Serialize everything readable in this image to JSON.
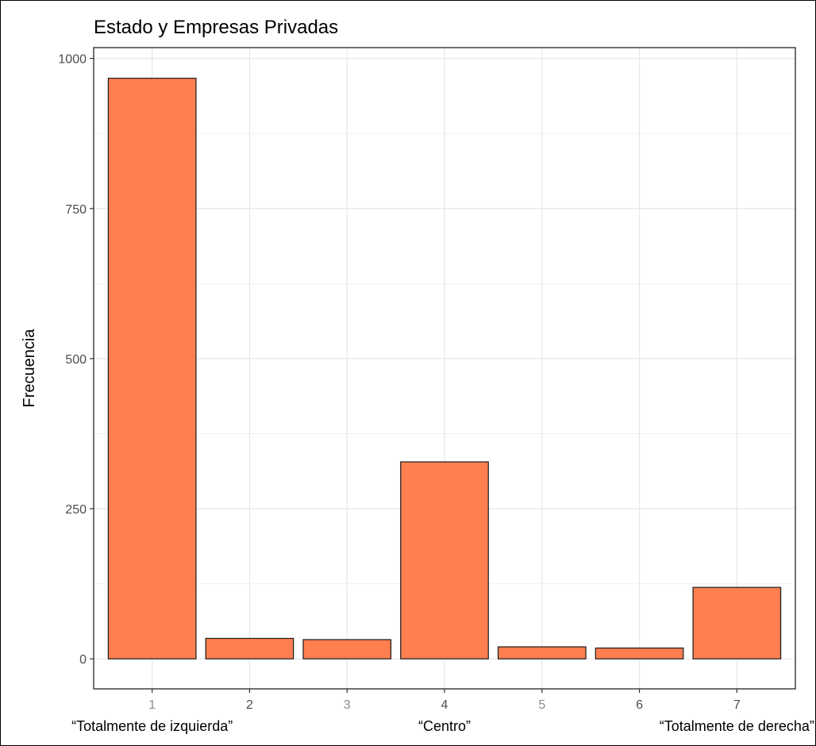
{
  "chart_data": {
    "type": "bar",
    "title": "Estado y Empresas Privadas",
    "xlabel": "",
    "ylabel": "Frecuencia",
    "categories": [
      "1",
      "2",
      "3",
      "4",
      "5",
      "6",
      "7"
    ],
    "values": [
      967,
      34,
      32,
      328,
      20,
      18,
      119
    ],
    "ylim": [
      -50,
      1018
    ],
    "yticks": [
      0,
      250,
      500,
      750,
      1000
    ],
    "ytick_labels": [
      "0",
      "250",
      "500",
      "750",
      "1000"
    ],
    "grid": true,
    "legend": "none",
    "bar_color": "#FF7F50",
    "bar_edge_color": "#1a1a1a",
    "light_tick_categories": [
      "1",
      "3",
      "5"
    ],
    "category_annotations": [
      {
        "category": "1",
        "text": "“Totalmente de izquierda”"
      },
      {
        "category": "4",
        "text": "“Centro”"
      },
      {
        "category": "7",
        "text": "“Totalmente de derecha”"
      }
    ]
  }
}
